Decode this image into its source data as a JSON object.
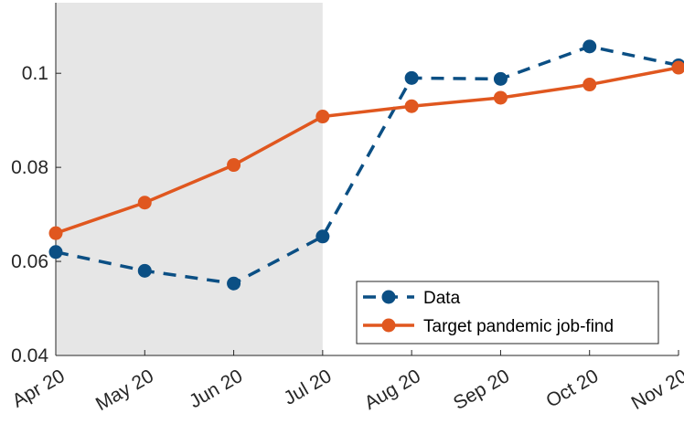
{
  "chart_data": {
    "type": "line",
    "title": "",
    "xlabel": "",
    "ylabel": "",
    "categories": [
      "Apr 20",
      "May 20",
      "Jun 20",
      "Jul 20",
      "Aug 20",
      "Sep 20",
      "Oct 20",
      "Nov 20"
    ],
    "y_ticks": [
      0.04,
      0.06,
      0.08,
      0.1
    ],
    "y_tick_labels": [
      "0.04",
      "0.06",
      "0.08",
      "0.1"
    ],
    "ylim": [
      0.04,
      0.115
    ],
    "shaded_region": {
      "from": "Apr 20",
      "to": "Jul 20",
      "color": "#e6e6e6"
    },
    "grid": false,
    "legend_position": "bottom-right",
    "series": [
      {
        "name": "Data",
        "values": [
          0.062,
          0.058,
          0.0553,
          0.0653,
          0.099,
          0.0988,
          0.1057,
          0.1017
        ],
        "color": "#0b4f84",
        "line_style": "dashed",
        "marker": "circle"
      },
      {
        "name": "Target pandemic job-find",
        "values": [
          0.066,
          0.0725,
          0.0805,
          0.0908,
          0.093,
          0.0948,
          0.0976,
          0.1012
        ],
        "color": "#e0571f",
        "line_style": "solid",
        "marker": "circle"
      }
    ]
  }
}
